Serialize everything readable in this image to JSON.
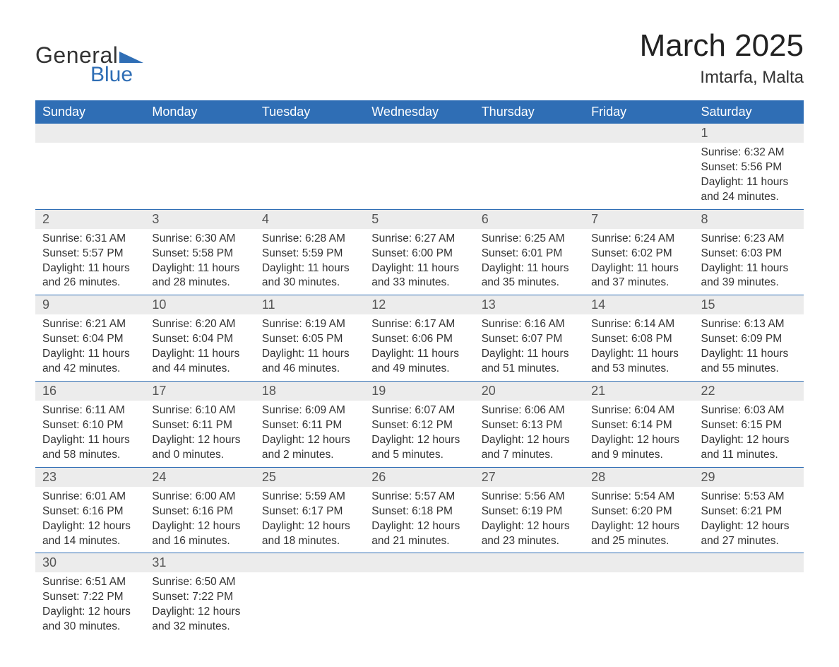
{
  "logo": {
    "general": "General",
    "blue": "Blue",
    "tri_color": "#2f6eb5"
  },
  "title": "March 2025",
  "location": "Imtarfa, Malta",
  "colors": {
    "header_bg": "#2f6eb5",
    "header_text": "#ffffff",
    "daynum_bg": "#ececec",
    "daynum_text": "#555555",
    "body_text": "#333333",
    "rule": "#2f6eb5",
    "page_bg": "#ffffff"
  },
  "fonts": {
    "title_pt": 44,
    "location_pt": 24,
    "th_pt": 18,
    "daynum_pt": 18,
    "body_pt": 15.5
  },
  "weekdays": [
    "Sunday",
    "Monday",
    "Tuesday",
    "Wednesday",
    "Thursday",
    "Friday",
    "Saturday"
  ],
  "weeks": [
    [
      {
        "empty": true
      },
      {
        "empty": true
      },
      {
        "empty": true
      },
      {
        "empty": true
      },
      {
        "empty": true
      },
      {
        "empty": true
      },
      {
        "n": "1",
        "sr": "Sunrise: 6:32 AM",
        "ss": "Sunset: 5:56 PM",
        "d1": "Daylight: 11 hours",
        "d2": "and 24 minutes."
      }
    ],
    [
      {
        "n": "2",
        "sr": "Sunrise: 6:31 AM",
        "ss": "Sunset: 5:57 PM",
        "d1": "Daylight: 11 hours",
        "d2": "and 26 minutes."
      },
      {
        "n": "3",
        "sr": "Sunrise: 6:30 AM",
        "ss": "Sunset: 5:58 PM",
        "d1": "Daylight: 11 hours",
        "d2": "and 28 minutes."
      },
      {
        "n": "4",
        "sr": "Sunrise: 6:28 AM",
        "ss": "Sunset: 5:59 PM",
        "d1": "Daylight: 11 hours",
        "d2": "and 30 minutes."
      },
      {
        "n": "5",
        "sr": "Sunrise: 6:27 AM",
        "ss": "Sunset: 6:00 PM",
        "d1": "Daylight: 11 hours",
        "d2": "and 33 minutes."
      },
      {
        "n": "6",
        "sr": "Sunrise: 6:25 AM",
        "ss": "Sunset: 6:01 PM",
        "d1": "Daylight: 11 hours",
        "d2": "and 35 minutes."
      },
      {
        "n": "7",
        "sr": "Sunrise: 6:24 AM",
        "ss": "Sunset: 6:02 PM",
        "d1": "Daylight: 11 hours",
        "d2": "and 37 minutes."
      },
      {
        "n": "8",
        "sr": "Sunrise: 6:23 AM",
        "ss": "Sunset: 6:03 PM",
        "d1": "Daylight: 11 hours",
        "d2": "and 39 minutes."
      }
    ],
    [
      {
        "n": "9",
        "sr": "Sunrise: 6:21 AM",
        "ss": "Sunset: 6:04 PM",
        "d1": "Daylight: 11 hours",
        "d2": "and 42 minutes."
      },
      {
        "n": "10",
        "sr": "Sunrise: 6:20 AM",
        "ss": "Sunset: 6:04 PM",
        "d1": "Daylight: 11 hours",
        "d2": "and 44 minutes."
      },
      {
        "n": "11",
        "sr": "Sunrise: 6:19 AM",
        "ss": "Sunset: 6:05 PM",
        "d1": "Daylight: 11 hours",
        "d2": "and 46 minutes."
      },
      {
        "n": "12",
        "sr": "Sunrise: 6:17 AM",
        "ss": "Sunset: 6:06 PM",
        "d1": "Daylight: 11 hours",
        "d2": "and 49 minutes."
      },
      {
        "n": "13",
        "sr": "Sunrise: 6:16 AM",
        "ss": "Sunset: 6:07 PM",
        "d1": "Daylight: 11 hours",
        "d2": "and 51 minutes."
      },
      {
        "n": "14",
        "sr": "Sunrise: 6:14 AM",
        "ss": "Sunset: 6:08 PM",
        "d1": "Daylight: 11 hours",
        "d2": "and 53 minutes."
      },
      {
        "n": "15",
        "sr": "Sunrise: 6:13 AM",
        "ss": "Sunset: 6:09 PM",
        "d1": "Daylight: 11 hours",
        "d2": "and 55 minutes."
      }
    ],
    [
      {
        "n": "16",
        "sr": "Sunrise: 6:11 AM",
        "ss": "Sunset: 6:10 PM",
        "d1": "Daylight: 11 hours",
        "d2": "and 58 minutes."
      },
      {
        "n": "17",
        "sr": "Sunrise: 6:10 AM",
        "ss": "Sunset: 6:11 PM",
        "d1": "Daylight: 12 hours",
        "d2": "and 0 minutes."
      },
      {
        "n": "18",
        "sr": "Sunrise: 6:09 AM",
        "ss": "Sunset: 6:11 PM",
        "d1": "Daylight: 12 hours",
        "d2": "and 2 minutes."
      },
      {
        "n": "19",
        "sr": "Sunrise: 6:07 AM",
        "ss": "Sunset: 6:12 PM",
        "d1": "Daylight: 12 hours",
        "d2": "and 5 minutes."
      },
      {
        "n": "20",
        "sr": "Sunrise: 6:06 AM",
        "ss": "Sunset: 6:13 PM",
        "d1": "Daylight: 12 hours",
        "d2": "and 7 minutes."
      },
      {
        "n": "21",
        "sr": "Sunrise: 6:04 AM",
        "ss": "Sunset: 6:14 PM",
        "d1": "Daylight: 12 hours",
        "d2": "and 9 minutes."
      },
      {
        "n": "22",
        "sr": "Sunrise: 6:03 AM",
        "ss": "Sunset: 6:15 PM",
        "d1": "Daylight: 12 hours",
        "d2": "and 11 minutes."
      }
    ],
    [
      {
        "n": "23",
        "sr": "Sunrise: 6:01 AM",
        "ss": "Sunset: 6:16 PM",
        "d1": "Daylight: 12 hours",
        "d2": "and 14 minutes."
      },
      {
        "n": "24",
        "sr": "Sunrise: 6:00 AM",
        "ss": "Sunset: 6:16 PM",
        "d1": "Daylight: 12 hours",
        "d2": "and 16 minutes."
      },
      {
        "n": "25",
        "sr": "Sunrise: 5:59 AM",
        "ss": "Sunset: 6:17 PM",
        "d1": "Daylight: 12 hours",
        "d2": "and 18 minutes."
      },
      {
        "n": "26",
        "sr": "Sunrise: 5:57 AM",
        "ss": "Sunset: 6:18 PM",
        "d1": "Daylight: 12 hours",
        "d2": "and 21 minutes."
      },
      {
        "n": "27",
        "sr": "Sunrise: 5:56 AM",
        "ss": "Sunset: 6:19 PM",
        "d1": "Daylight: 12 hours",
        "d2": "and 23 minutes."
      },
      {
        "n": "28",
        "sr": "Sunrise: 5:54 AM",
        "ss": "Sunset: 6:20 PM",
        "d1": "Daylight: 12 hours",
        "d2": "and 25 minutes."
      },
      {
        "n": "29",
        "sr": "Sunrise: 5:53 AM",
        "ss": "Sunset: 6:21 PM",
        "d1": "Daylight: 12 hours",
        "d2": "and 27 minutes."
      }
    ],
    [
      {
        "n": "30",
        "sr": "Sunrise: 6:51 AM",
        "ss": "Sunset: 7:22 PM",
        "d1": "Daylight: 12 hours",
        "d2": "and 30 minutes."
      },
      {
        "n": "31",
        "sr": "Sunrise: 6:50 AM",
        "ss": "Sunset: 7:22 PM",
        "d1": "Daylight: 12 hours",
        "d2": "and 32 minutes."
      },
      {
        "empty": true
      },
      {
        "empty": true
      },
      {
        "empty": true
      },
      {
        "empty": true
      },
      {
        "empty": true
      }
    ]
  ]
}
